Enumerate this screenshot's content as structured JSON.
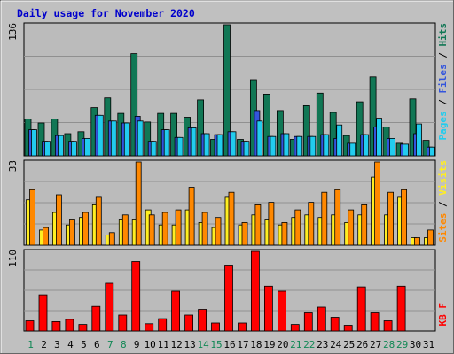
{
  "colors": {
    "background": "#c0c0c0",
    "panel": "#bbbbbb",
    "grid": "#909090",
    "title": "#0000cc",
    "hits": "#117755",
    "files": "#3355dd",
    "pages": "#22ccee",
    "visits": "#ffee22",
    "sites": "#ff8800",
    "kbytes": "#ff0000",
    "weekend_day": "#118855",
    "weekday": "#000000"
  },
  "chart_data": [
    {
      "type": "bar",
      "title": "Daily usage for November 2020",
      "panel": "hits_files_pages",
      "y_tick_label": "136",
      "ylim": [
        0,
        136
      ],
      "grid": true,
      "categories": [
        "1",
        "2",
        "3",
        "4",
        "5",
        "6",
        "7",
        "8",
        "9",
        "10",
        "11",
        "12",
        "13",
        "14",
        "15",
        "16",
        "17",
        "18",
        "19",
        "20",
        "21",
        "22",
        "23",
        "24",
        "25",
        "26",
        "27",
        "28",
        "29",
        "30",
        "31"
      ],
      "weekend_days": [
        "1",
        "7",
        "8",
        "14",
        "15",
        "21",
        "22",
        "28",
        "29"
      ],
      "legend": [
        "Pages",
        "Files",
        "Hits"
      ],
      "series": [
        {
          "name": "Hits",
          "color_key": "hits",
          "values": [
            38,
            34,
            38,
            23,
            25,
            50,
            60,
            44,
            106,
            35,
            44,
            44,
            40,
            58,
            17,
            136,
            17,
            79,
            64,
            47,
            17,
            52,
            65,
            45,
            21,
            56,
            82,
            30,
            13,
            59,
            16
          ]
        },
        {
          "name": "Files",
          "color_key": "files",
          "values": [
            27,
            15,
            21,
            15,
            18,
            42,
            36,
            34,
            41,
            15,
            27,
            19,
            29,
            23,
            22,
            25,
            15,
            47,
            20,
            23,
            20,
            20,
            22,
            18,
            13,
            22,
            30,
            18,
            12,
            23,
            9
          ]
        },
        {
          "name": "Pages",
          "color_key": "pages",
          "values": [
            27,
            15,
            21,
            15,
            18,
            42,
            36,
            34,
            36,
            15,
            27,
            19,
            29,
            23,
            22,
            25,
            15,
            36,
            20,
            23,
            20,
            20,
            22,
            32,
            13,
            22,
            39,
            18,
            12,
            33,
            9
          ]
        }
      ]
    },
    {
      "type": "bar",
      "panel": "visits_sites",
      "y_tick_label": "33",
      "ylim": [
        0,
        33
      ],
      "grid": true,
      "categories": [
        "1",
        "2",
        "3",
        "4",
        "5",
        "6",
        "7",
        "8",
        "9",
        "10",
        "11",
        "12",
        "13",
        "14",
        "15",
        "16",
        "17",
        "18",
        "19",
        "20",
        "21",
        "22",
        "23",
        "24",
        "25",
        "26",
        "27",
        "28",
        "29",
        "30",
        "31"
      ],
      "legend": [
        "Sites",
        "/",
        "Visits"
      ],
      "series": [
        {
          "name": "Visits",
          "color_key": "visits",
          "values": [
            18,
            6,
            13,
            8,
            11,
            16,
            4,
            10,
            10,
            14,
            8,
            8,
            14,
            9,
            7,
            19,
            8,
            12,
            10,
            8,
            11,
            12,
            11,
            12,
            9,
            12,
            27,
            12,
            19,
            3,
            3
          ]
        },
        {
          "name": "Sites",
          "color_key": "sites",
          "values": [
            22,
            7,
            20,
            10,
            13,
            19,
            5,
            12,
            33,
            12,
            13,
            14,
            23,
            13,
            11,
            21,
            9,
            16,
            17,
            9,
            14,
            17,
            21,
            22,
            14,
            16,
            33,
            21,
            22,
            3,
            6
          ]
        }
      ]
    },
    {
      "type": "bar",
      "panel": "kbytes",
      "y_tick_label": "110",
      "ylim": [
        0,
        110
      ],
      "grid": true,
      "categories": [
        "1",
        "2",
        "3",
        "4",
        "5",
        "6",
        "7",
        "8",
        "9",
        "10",
        "11",
        "12",
        "13",
        "14",
        "15",
        "16",
        "17",
        "18",
        "19",
        "20",
        "21",
        "22",
        "23",
        "24",
        "25",
        "26",
        "27",
        "28",
        "29",
        "30",
        "31"
      ],
      "legend": [
        "KB F"
      ],
      "series": [
        {
          "name": "KB F",
          "color_key": "kbytes",
          "values": [
            14,
            50,
            13,
            16,
            9,
            34,
            66,
            22,
            96,
            10,
            17,
            55,
            22,
            30,
            11,
            91,
            11,
            110,
            62,
            55,
            9,
            25,
            33,
            19,
            8,
            61,
            25,
            14,
            62,
            0,
            0
          ]
        }
      ]
    }
  ]
}
